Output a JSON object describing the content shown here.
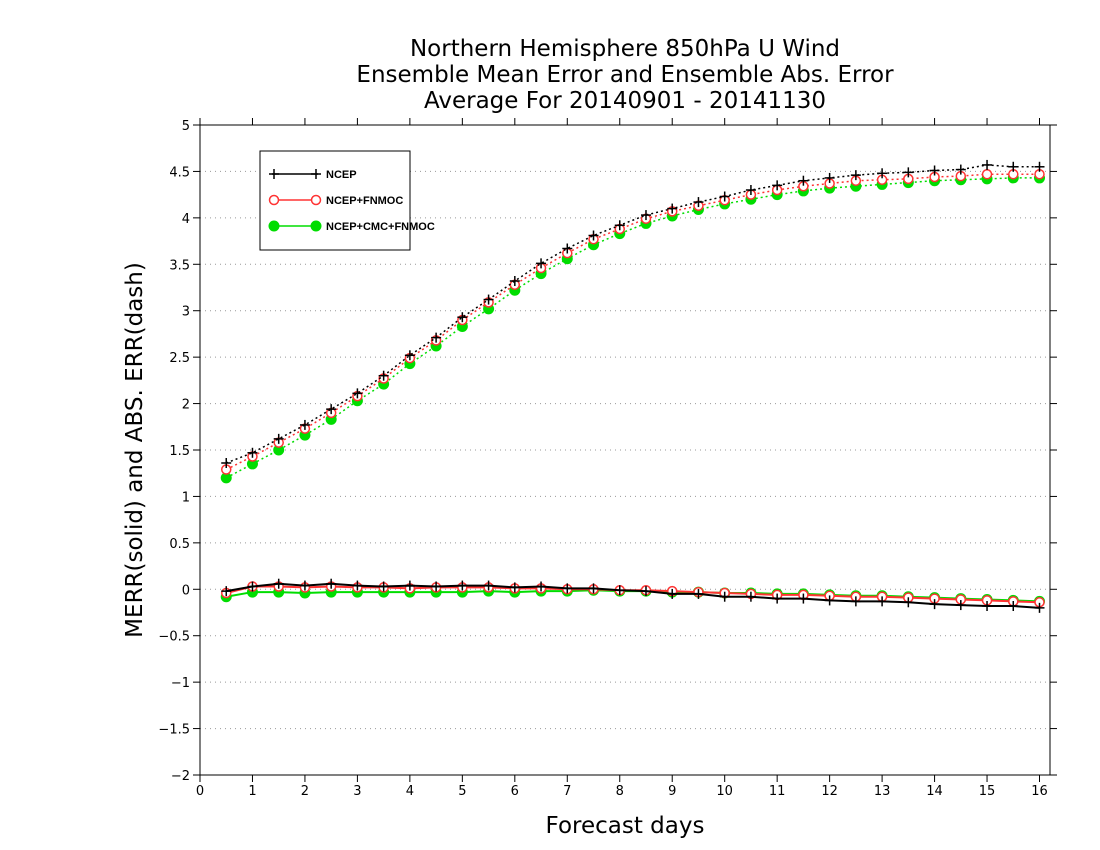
{
  "chart_data": {
    "type": "line",
    "title_lines": [
      "Northern Hemisphere 850hPa U Wind",
      "Ensemble Mean Error and Ensemble Abs. Error",
      "Average For 20140901 - 20141130"
    ],
    "xlabel": "Forecast days",
    "ylabel": "MERR(solid) and ABS. ERR(dash)",
    "xlim": [
      0,
      16.2
    ],
    "ylim": [
      -2,
      5
    ],
    "xticks": [
      0,
      1,
      2,
      3,
      4,
      5,
      6,
      7,
      8,
      9,
      10,
      11,
      12,
      13,
      14,
      15,
      16
    ],
    "yticks": [
      -2,
      -1.5,
      -1,
      -0.5,
      0,
      0.5,
      1,
      1.5,
      2,
      2.5,
      3,
      3.5,
      4,
      4.5,
      5
    ],
    "grid": "horizontal dotted",
    "legend_position": "top-left",
    "x": [
      0.5,
      1,
      1.5,
      2,
      2.5,
      3,
      3.5,
      4,
      4.5,
      5,
      5.5,
      6,
      6.5,
      7,
      7.5,
      8,
      8.5,
      9,
      9.5,
      10,
      10.5,
      11,
      11.5,
      12,
      12.5,
      13,
      13.5,
      14,
      14.5,
      15,
      15.5,
      16
    ],
    "series": [
      {
        "name": "NCEP",
        "color": "#000000",
        "marker": "plus",
        "abs_err": [
          1.36,
          1.47,
          1.62,
          1.77,
          1.94,
          2.11,
          2.3,
          2.52,
          2.71,
          2.93,
          3.12,
          3.32,
          3.51,
          3.67,
          3.81,
          3.92,
          4.03,
          4.1,
          4.17,
          4.23,
          4.3,
          4.35,
          4.4,
          4.43,
          4.46,
          4.48,
          4.49,
          4.51,
          4.52,
          4.57,
          4.55,
          4.55
        ],
        "mean_err": [
          -0.02,
          0.03,
          0.06,
          0.04,
          0.06,
          0.04,
          0.03,
          0.04,
          0.03,
          0.04,
          0.04,
          0.02,
          0.03,
          0.01,
          0.01,
          -0.01,
          -0.02,
          -0.05,
          -0.05,
          -0.08,
          -0.08,
          -0.1,
          -0.1,
          -0.12,
          -0.13,
          -0.13,
          -0.14,
          -0.16,
          -0.17,
          -0.18,
          -0.18,
          -0.2
        ]
      },
      {
        "name": "NCEP+FNMOC",
        "color": "#ff3333",
        "marker": "open-circle",
        "abs_err": [
          1.29,
          1.43,
          1.58,
          1.73,
          1.9,
          2.08,
          2.27,
          2.49,
          2.68,
          2.9,
          3.09,
          3.28,
          3.46,
          3.62,
          3.77,
          3.88,
          3.99,
          4.07,
          4.13,
          4.19,
          4.25,
          4.3,
          4.34,
          4.37,
          4.4,
          4.41,
          4.42,
          4.44,
          4.45,
          4.47,
          4.47,
          4.47
        ],
        "mean_err": [
          -0.04,
          0.03,
          0.03,
          0.02,
          0.03,
          0.02,
          0.02,
          0.01,
          0.02,
          0.02,
          0.02,
          0.01,
          0.01,
          0.0,
          0.0,
          -0.01,
          -0.01,
          -0.02,
          -0.03,
          -0.04,
          -0.05,
          -0.06,
          -0.06,
          -0.07,
          -0.08,
          -0.08,
          -0.09,
          -0.1,
          -0.11,
          -0.12,
          -0.13,
          -0.14
        ]
      },
      {
        "name": "NCEP+CMC+FNMOC",
        "color": "#00dd00",
        "marker": "filled-circle",
        "abs_err": [
          1.2,
          1.35,
          1.5,
          1.66,
          1.83,
          2.03,
          2.21,
          2.43,
          2.62,
          2.83,
          3.02,
          3.22,
          3.4,
          3.56,
          3.71,
          3.83,
          3.94,
          4.02,
          4.09,
          4.15,
          4.2,
          4.25,
          4.29,
          4.32,
          4.34,
          4.36,
          4.38,
          4.4,
          4.41,
          4.42,
          4.43,
          4.43
        ],
        "mean_err": [
          -0.08,
          -0.03,
          -0.03,
          -0.04,
          -0.03,
          -0.03,
          -0.03,
          -0.03,
          -0.03,
          -0.03,
          -0.02,
          -0.03,
          -0.02,
          -0.02,
          -0.01,
          -0.02,
          -0.02,
          -0.03,
          -0.03,
          -0.04,
          -0.04,
          -0.05,
          -0.05,
          -0.06,
          -0.07,
          -0.07,
          -0.08,
          -0.09,
          -0.1,
          -0.11,
          -0.12,
          -0.13
        ]
      }
    ]
  }
}
